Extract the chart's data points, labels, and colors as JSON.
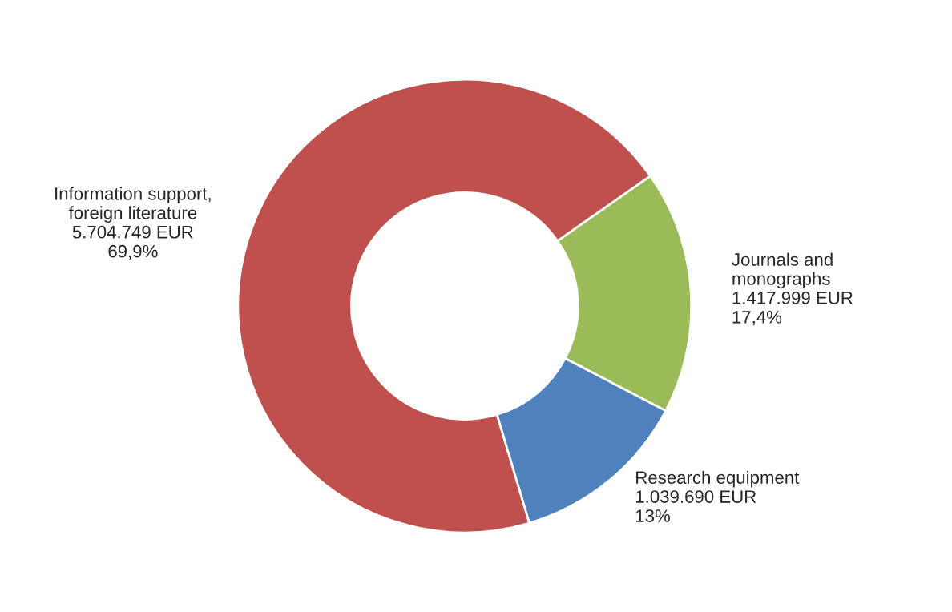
{
  "chart_data": {
    "type": "donut",
    "categories": [
      "Information support,\nforeign literature",
      "Journals and\nmonographs",
      "Research equipment"
    ],
    "values": [
      5704749,
      1417999,
      1039690
    ],
    "value_labels": [
      "5.704.749 EUR\n69,9%",
      "1.417.999 EUR\n17,4%",
      "1.039.690 EUR\n13%"
    ],
    "colors": [
      "#c0504d",
      "#9bbb59",
      "#4f81bd"
    ]
  }
}
